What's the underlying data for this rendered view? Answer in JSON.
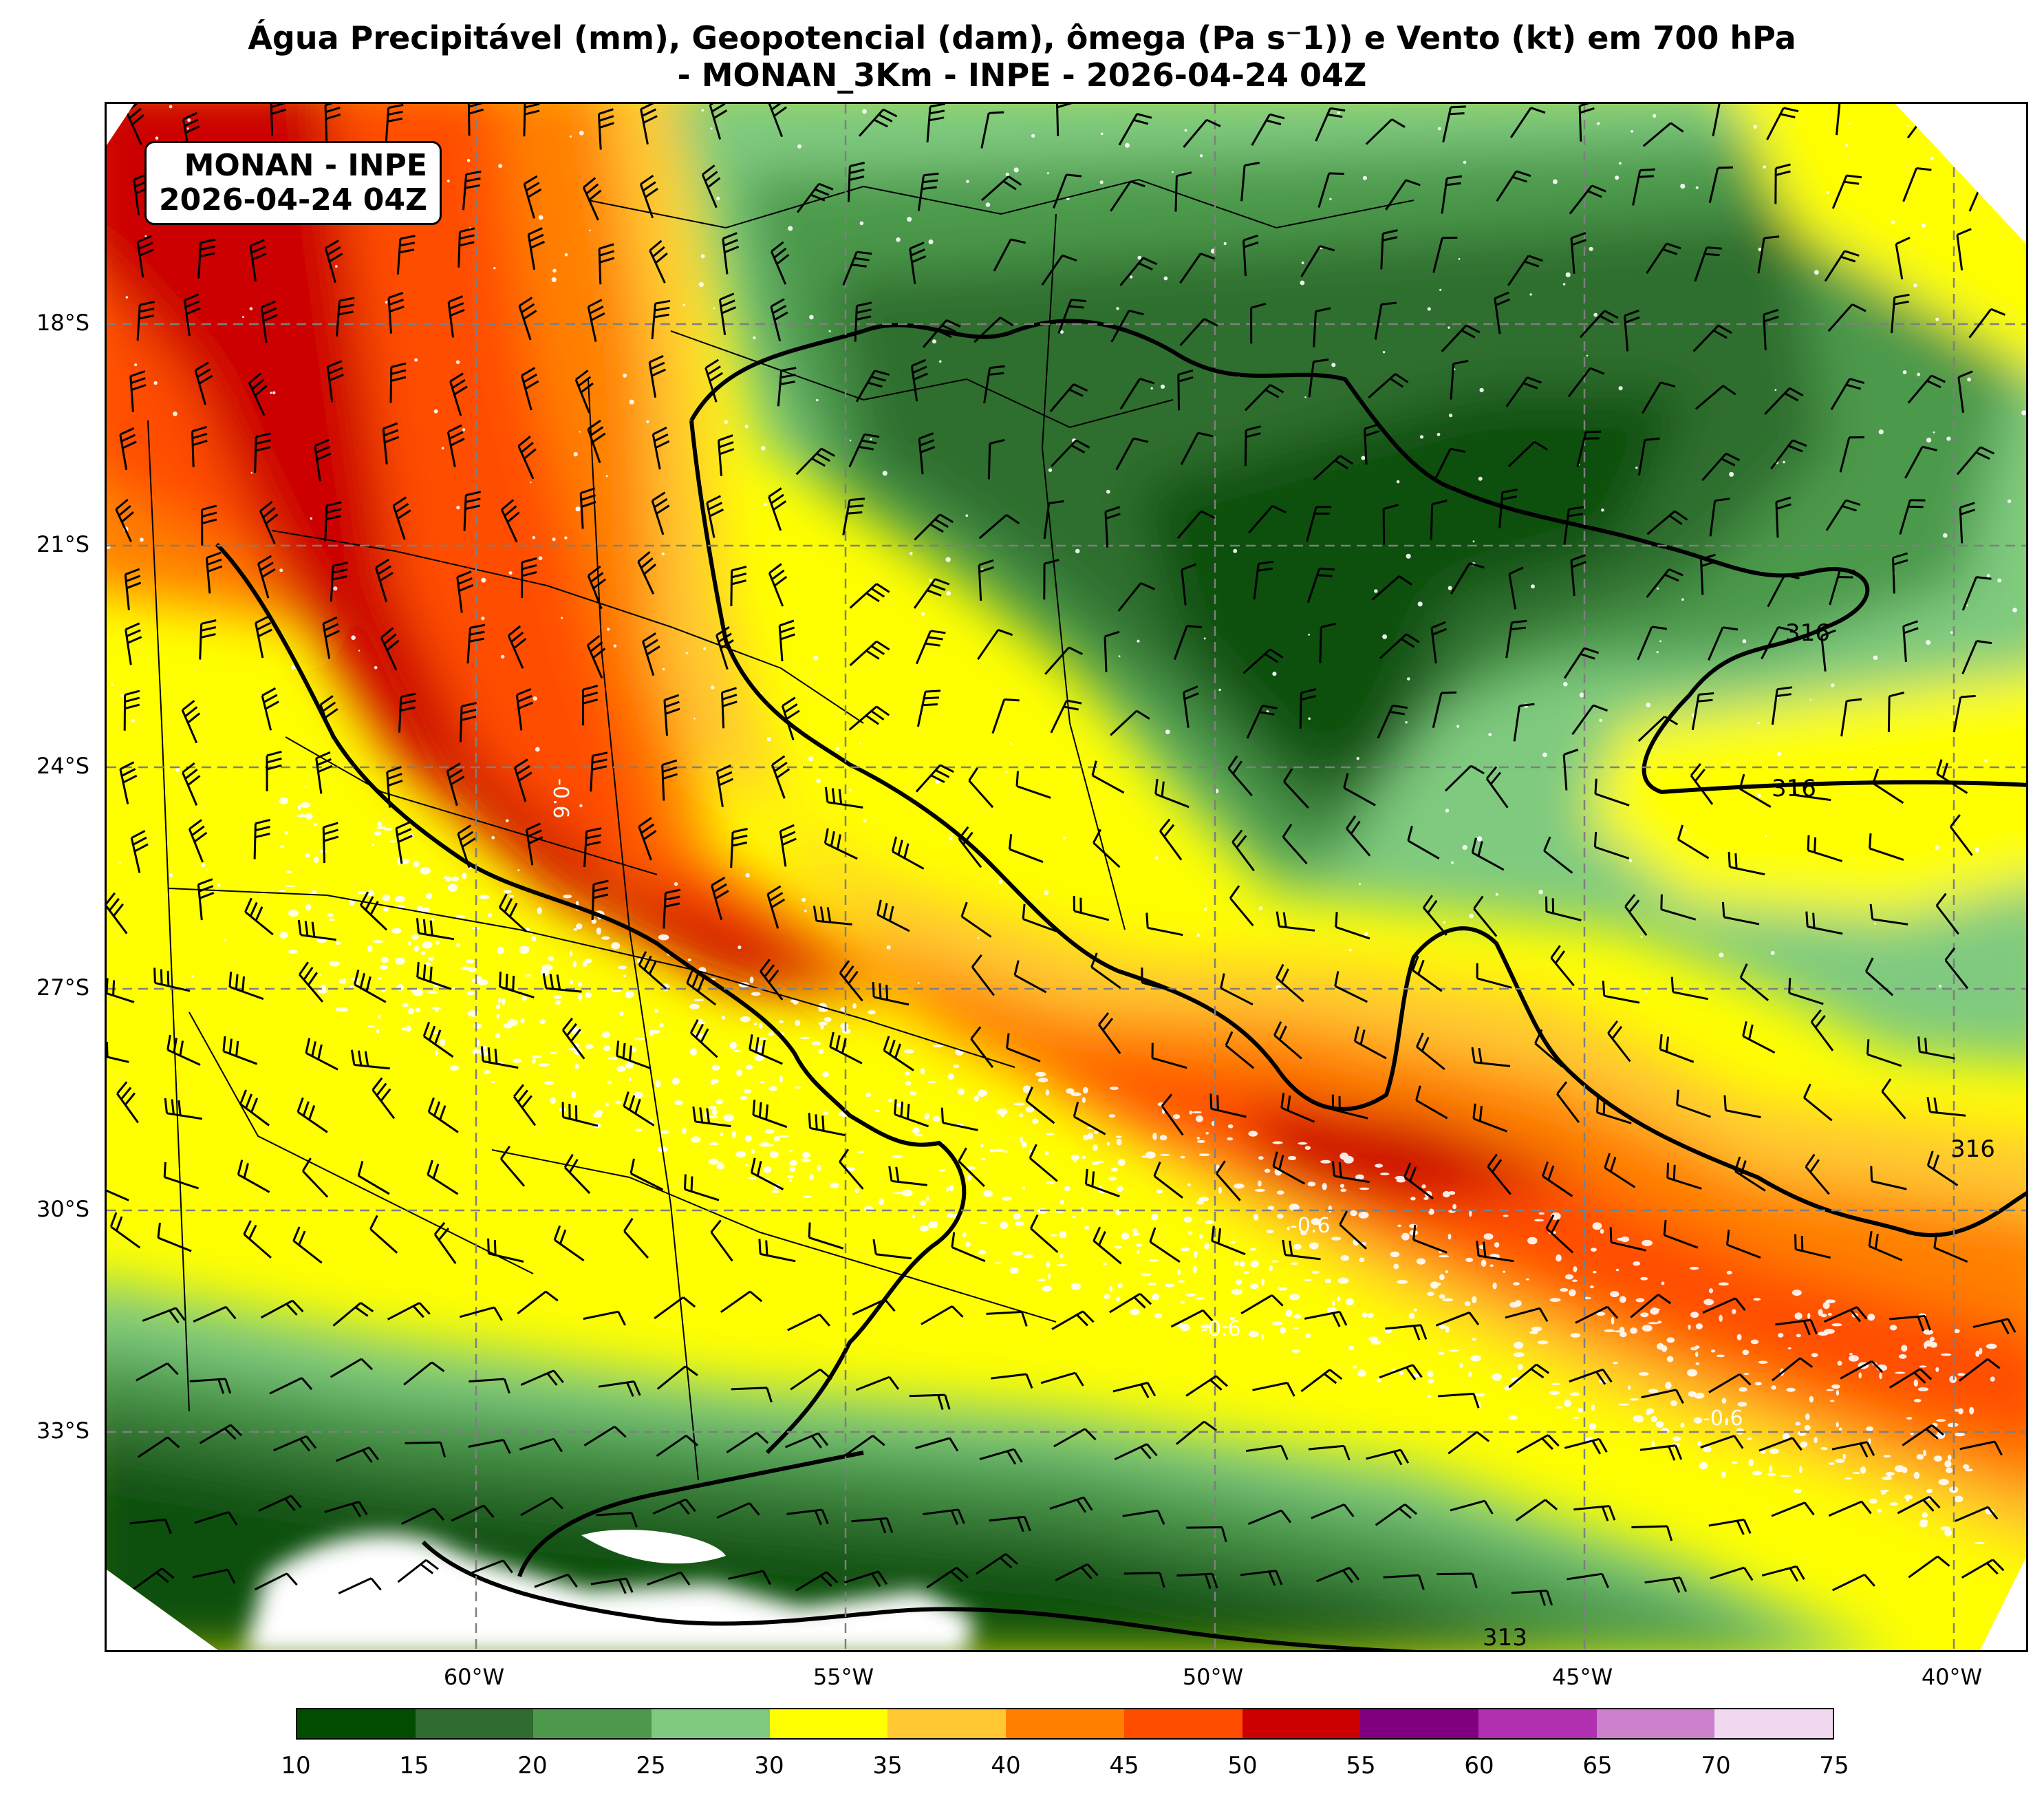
{
  "title": {
    "line1": "Água Precipitável (mm), Geopotencial (dam), ômega (Pa s⁻1)) e Vento (kt) em 700 hPa",
    "line2": "- MONAN_3Km - INPE - 2026-04-24 04Z"
  },
  "infobox": {
    "line1": "MONAN - INPE",
    "line2": "2026-04-24 04Z"
  },
  "map": {
    "lat_labels": [
      "18°S",
      "21°S",
      "24°S",
      "27°S",
      "30°S",
      "33°S"
    ],
    "lon_labels": [
      "60°W",
      "55°W",
      "50°W",
      "45°W",
      "40°W"
    ],
    "contour_labels": [
      "316",
      "316",
      "316",
      "313",
      "-0.6",
      "-0.6",
      "-0.6",
      "-0.6"
    ]
  },
  "colorbar": {
    "ticks": [
      "10",
      "15",
      "20",
      "25",
      "30",
      "35",
      "40",
      "45",
      "50",
      "55",
      "60",
      "65",
      "70",
      "75"
    ],
    "colors": [
      "#004d00",
      "#2e6b2e",
      "#4c994c",
      "#7fca7f",
      "#ffff00",
      "#ffc833",
      "#ff8000",
      "#ff4d00",
      "#cc0000",
      "#800080",
      "#b030b0",
      "#cc80cc",
      "#f0d8f0"
    ]
  },
  "palette": {
    "dark_green": "#0b4f0b",
    "mid_green": "#2f6e2f",
    "green": "#4c994c",
    "light_green": "#7fca7f",
    "yellow": "#ffff00",
    "light_orange": "#ffc833",
    "orange": "#ff8000",
    "red_orange": "#ff4d00",
    "red": "#cc0000"
  }
}
